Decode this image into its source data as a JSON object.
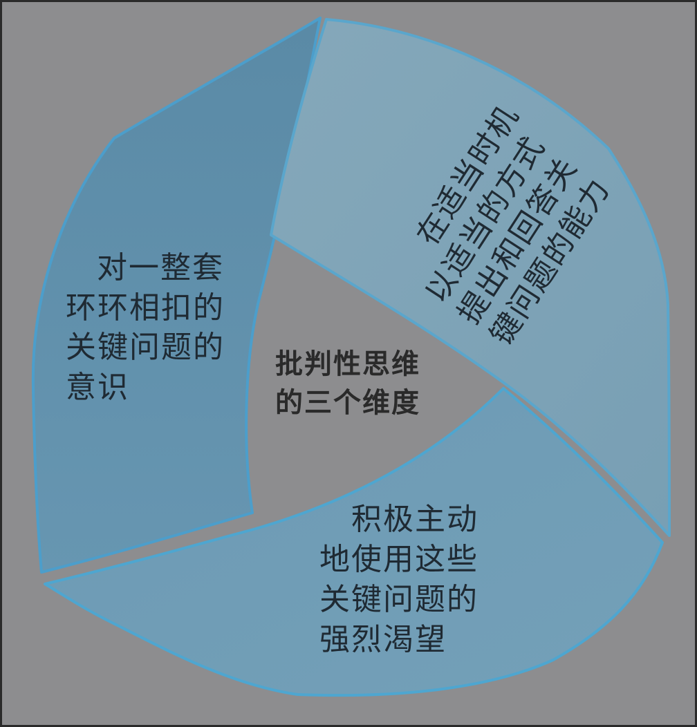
{
  "diagram": {
    "center": {
      "lines": [
        "批判性思维",
        "的三个维度"
      ]
    },
    "segments": [
      {
        "id": "left",
        "lines": [
          "对一整套",
          "环环相扣的",
          "关键问题的",
          "意识"
        ],
        "color": "#5d90ad"
      },
      {
        "id": "top-right",
        "lines": [
          "在适当时机",
          "以适当的方式",
          "提出和回答关",
          "键问题的能力"
        ],
        "color": "#7fa3b6"
      },
      {
        "id": "bottom",
        "lines": [
          "积极主动",
          "地使用这些",
          "关键问题的",
          "强烈渴望"
        ],
        "color": "#6e9bb5"
      }
    ],
    "colors": {
      "background": "#8d8d8f",
      "segment_edge": "#5aa3c9"
    }
  }
}
